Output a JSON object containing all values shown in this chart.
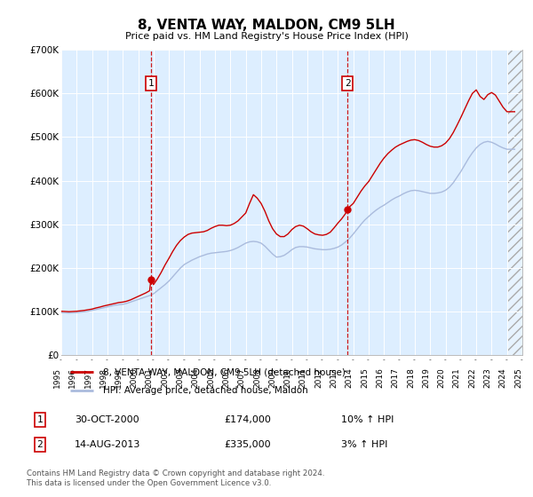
{
  "title": "8, VENTA WAY, MALDON, CM9 5LH",
  "subtitle": "Price paid vs. HM Land Registry's House Price Index (HPI)",
  "ylim": [
    0,
    700000
  ],
  "yticks": [
    0,
    100000,
    200000,
    300000,
    400000,
    500000,
    600000,
    700000
  ],
  "plot_bg_color": "#ddeeff",
  "hpi_color": "#aabbdd",
  "price_color": "#cc0000",
  "legend_label_price": "8, VENTA WAY, MALDON, CM9 5LH (detached house)",
  "legend_label_hpi": "HPI: Average price, detached house, Maldon",
  "transaction1_date": "30-OCT-2000",
  "transaction1_price": "£174,000",
  "transaction1_hpi": "10% ↑ HPI",
  "transaction2_date": "14-AUG-2013",
  "transaction2_price": "£335,000",
  "transaction2_hpi": "3% ↑ HPI",
  "footer": "Contains HM Land Registry data © Crown copyright and database right 2024.\nThis data is licensed under the Open Government Licence v3.0.",
  "marker1_x_year": 2000.83,
  "marker1_y": 174000,
  "marker2_x_year": 2013.62,
  "marker2_y": 335000,
  "hpi_data": [
    [
      1995.0,
      98000
    ],
    [
      1995.25,
      97500
    ],
    [
      1995.5,
      97000
    ],
    [
      1995.75,
      97500
    ],
    [
      1996.0,
      98000
    ],
    [
      1996.25,
      99000
    ],
    [
      1996.5,
      100000
    ],
    [
      1996.75,
      101000
    ],
    [
      1997.0,
      103000
    ],
    [
      1997.25,
      105000
    ],
    [
      1997.5,
      107000
    ],
    [
      1997.75,
      109000
    ],
    [
      1998.0,
      111000
    ],
    [
      1998.25,
      113000
    ],
    [
      1998.5,
      115000
    ],
    [
      1998.75,
      116000
    ],
    [
      1999.0,
      117000
    ],
    [
      1999.25,
      119000
    ],
    [
      1999.5,
      122000
    ],
    [
      1999.75,
      125000
    ],
    [
      2000.0,
      128000
    ],
    [
      2000.25,
      131000
    ],
    [
      2000.5,
      134000
    ],
    [
      2000.75,
      137000
    ],
    [
      2001.0,
      141000
    ],
    [
      2001.25,
      148000
    ],
    [
      2001.5,
      155000
    ],
    [
      2001.75,
      162000
    ],
    [
      2002.0,
      170000
    ],
    [
      2002.25,
      180000
    ],
    [
      2002.5,
      190000
    ],
    [
      2002.75,
      200000
    ],
    [
      2003.0,
      208000
    ],
    [
      2003.25,
      213000
    ],
    [
      2003.5,
      218000
    ],
    [
      2003.75,
      222000
    ],
    [
      2004.0,
      226000
    ],
    [
      2004.25,
      229000
    ],
    [
      2004.5,
      232000
    ],
    [
      2004.75,
      234000
    ],
    [
      2005.0,
      235000
    ],
    [
      2005.25,
      236000
    ],
    [
      2005.5,
      237000
    ],
    [
      2005.75,
      238000
    ],
    [
      2006.0,
      240000
    ],
    [
      2006.25,
      243000
    ],
    [
      2006.5,
      247000
    ],
    [
      2006.75,
      252000
    ],
    [
      2007.0,
      257000
    ],
    [
      2007.25,
      260000
    ],
    [
      2007.5,
      261000
    ],
    [
      2007.75,
      260000
    ],
    [
      2008.0,
      257000
    ],
    [
      2008.25,
      250000
    ],
    [
      2008.5,
      241000
    ],
    [
      2008.75,
      232000
    ],
    [
      2009.0,
      225000
    ],
    [
      2009.25,
      226000
    ],
    [
      2009.5,
      229000
    ],
    [
      2009.75,
      235000
    ],
    [
      2010.0,
      242000
    ],
    [
      2010.25,
      247000
    ],
    [
      2010.5,
      249000
    ],
    [
      2010.75,
      249000
    ],
    [
      2011.0,
      248000
    ],
    [
      2011.25,
      246000
    ],
    [
      2011.5,
      244000
    ],
    [
      2011.75,
      243000
    ],
    [
      2012.0,
      242000
    ],
    [
      2012.25,
      242000
    ],
    [
      2012.5,
      243000
    ],
    [
      2012.75,
      245000
    ],
    [
      2013.0,
      248000
    ],
    [
      2013.25,
      253000
    ],
    [
      2013.5,
      260000
    ],
    [
      2013.75,
      268000
    ],
    [
      2014.0,
      278000
    ],
    [
      2014.25,
      289000
    ],
    [
      2014.5,
      300000
    ],
    [
      2014.75,
      310000
    ],
    [
      2015.0,
      318000
    ],
    [
      2015.25,
      326000
    ],
    [
      2015.5,
      333000
    ],
    [
      2015.75,
      339000
    ],
    [
      2016.0,
      344000
    ],
    [
      2016.25,
      350000
    ],
    [
      2016.5,
      356000
    ],
    [
      2016.75,
      361000
    ],
    [
      2017.0,
      365000
    ],
    [
      2017.25,
      370000
    ],
    [
      2017.5,
      374000
    ],
    [
      2017.75,
      377000
    ],
    [
      2018.0,
      378000
    ],
    [
      2018.25,
      377000
    ],
    [
      2018.5,
      375000
    ],
    [
      2018.75,
      373000
    ],
    [
      2019.0,
      371000
    ],
    [
      2019.25,
      371000
    ],
    [
      2019.5,
      372000
    ],
    [
      2019.75,
      374000
    ],
    [
      2020.0,
      378000
    ],
    [
      2020.25,
      385000
    ],
    [
      2020.5,
      395000
    ],
    [
      2020.75,
      408000
    ],
    [
      2021.0,
      421000
    ],
    [
      2021.25,
      436000
    ],
    [
      2021.5,
      451000
    ],
    [
      2021.75,
      464000
    ],
    [
      2022.0,
      475000
    ],
    [
      2022.25,
      483000
    ],
    [
      2022.5,
      488000
    ],
    [
      2022.75,
      490000
    ],
    [
      2023.0,
      488000
    ],
    [
      2023.25,
      484000
    ],
    [
      2023.5,
      479000
    ],
    [
      2023.75,
      475000
    ],
    [
      2024.0,
      472000
    ],
    [
      2024.5,
      472000
    ]
  ],
  "price_data": [
    [
      1995.0,
      101000
    ],
    [
      1995.25,
      100500
    ],
    [
      1995.5,
      100000
    ],
    [
      1995.75,
      100500
    ],
    [
      1996.0,
      101000
    ],
    [
      1996.25,
      102000
    ],
    [
      1996.5,
      103000
    ],
    [
      1996.75,
      104500
    ],
    [
      1997.0,
      106000
    ],
    [
      1997.25,
      108500
    ],
    [
      1997.5,
      110500
    ],
    [
      1997.75,
      113000
    ],
    [
      1998.0,
      115000
    ],
    [
      1998.25,
      117000
    ],
    [
      1998.5,
      119000
    ],
    [
      1998.75,
      121000
    ],
    [
      1999.0,
      122000
    ],
    [
      1999.25,
      124000
    ],
    [
      1999.5,
      127000
    ],
    [
      1999.75,
      131000
    ],
    [
      2000.0,
      135000
    ],
    [
      2000.25,
      139000
    ],
    [
      2000.5,
      143000
    ],
    [
      2000.75,
      148000
    ],
    [
      2000.83,
      174000
    ],
    [
      2001.0,
      162000
    ],
    [
      2001.25,
      175000
    ],
    [
      2001.5,
      190000
    ],
    [
      2001.75,
      207000
    ],
    [
      2002.0,
      222000
    ],
    [
      2002.25,
      238000
    ],
    [
      2002.5,
      252000
    ],
    [
      2002.75,
      263000
    ],
    [
      2003.0,
      271000
    ],
    [
      2003.25,
      277000
    ],
    [
      2003.5,
      280000
    ],
    [
      2003.75,
      281000
    ],
    [
      2004.0,
      282000
    ],
    [
      2004.25,
      283000
    ],
    [
      2004.5,
      286000
    ],
    [
      2004.75,
      291000
    ],
    [
      2005.0,
      295000
    ],
    [
      2005.25,
      298000
    ],
    [
      2005.5,
      298000
    ],
    [
      2005.75,
      297000
    ],
    [
      2006.0,
      298000
    ],
    [
      2006.25,
      302000
    ],
    [
      2006.5,
      308000
    ],
    [
      2006.75,
      317000
    ],
    [
      2007.0,
      326000
    ],
    [
      2007.25,
      348000
    ],
    [
      2007.5,
      368000
    ],
    [
      2007.75,
      360000
    ],
    [
      2008.0,
      348000
    ],
    [
      2008.25,
      330000
    ],
    [
      2008.5,
      308000
    ],
    [
      2008.75,
      290000
    ],
    [
      2009.0,
      278000
    ],
    [
      2009.25,
      272000
    ],
    [
      2009.5,
      272000
    ],
    [
      2009.75,
      278000
    ],
    [
      2010.0,
      288000
    ],
    [
      2010.25,
      295000
    ],
    [
      2010.5,
      298000
    ],
    [
      2010.75,
      296000
    ],
    [
      2011.0,
      290000
    ],
    [
      2011.25,
      283000
    ],
    [
      2011.5,
      278000
    ],
    [
      2011.75,
      276000
    ],
    [
      2012.0,
      275000
    ],
    [
      2012.25,
      277000
    ],
    [
      2012.5,
      282000
    ],
    [
      2012.75,
      292000
    ],
    [
      2013.0,
      303000
    ],
    [
      2013.25,
      313000
    ],
    [
      2013.5,
      325000
    ],
    [
      2013.62,
      335000
    ],
    [
      2013.75,
      340000
    ],
    [
      2014.0,
      348000
    ],
    [
      2014.25,
      362000
    ],
    [
      2014.5,
      376000
    ],
    [
      2014.75,
      388000
    ],
    [
      2015.0,
      398000
    ],
    [
      2015.25,
      412000
    ],
    [
      2015.5,
      426000
    ],
    [
      2015.75,
      440000
    ],
    [
      2016.0,
      452000
    ],
    [
      2016.25,
      462000
    ],
    [
      2016.5,
      470000
    ],
    [
      2016.75,
      477000
    ],
    [
      2017.0,
      482000
    ],
    [
      2017.25,
      486000
    ],
    [
      2017.5,
      490000
    ],
    [
      2017.75,
      493000
    ],
    [
      2018.0,
      494000
    ],
    [
      2018.25,
      492000
    ],
    [
      2018.5,
      488000
    ],
    [
      2018.75,
      483000
    ],
    [
      2019.0,
      479000
    ],
    [
      2019.25,
      477000
    ],
    [
      2019.5,
      477000
    ],
    [
      2019.75,
      480000
    ],
    [
      2020.0,
      486000
    ],
    [
      2020.25,
      496000
    ],
    [
      2020.5,
      510000
    ],
    [
      2020.75,
      527000
    ],
    [
      2021.0,
      545000
    ],
    [
      2021.25,
      564000
    ],
    [
      2021.5,
      583000
    ],
    [
      2021.75,
      600000
    ],
    [
      2022.0,
      608000
    ],
    [
      2022.25,
      593000
    ],
    [
      2022.5,
      586000
    ],
    [
      2022.75,
      597000
    ],
    [
      2023.0,
      602000
    ],
    [
      2023.25,
      596000
    ],
    [
      2023.5,
      582000
    ],
    [
      2023.75,
      568000
    ],
    [
      2024.0,
      558000
    ],
    [
      2024.5,
      558000
    ]
  ],
  "xmin": 1995,
  "xmax": 2025,
  "xticks": [
    1995,
    1996,
    1997,
    1998,
    1999,
    2000,
    2001,
    2002,
    2003,
    2004,
    2005,
    2006,
    2007,
    2008,
    2009,
    2010,
    2011,
    2012,
    2013,
    2014,
    2015,
    2016,
    2017,
    2018,
    2019,
    2020,
    2021,
    2022,
    2023,
    2024,
    2025
  ],
  "hatch_start": 2024.0
}
